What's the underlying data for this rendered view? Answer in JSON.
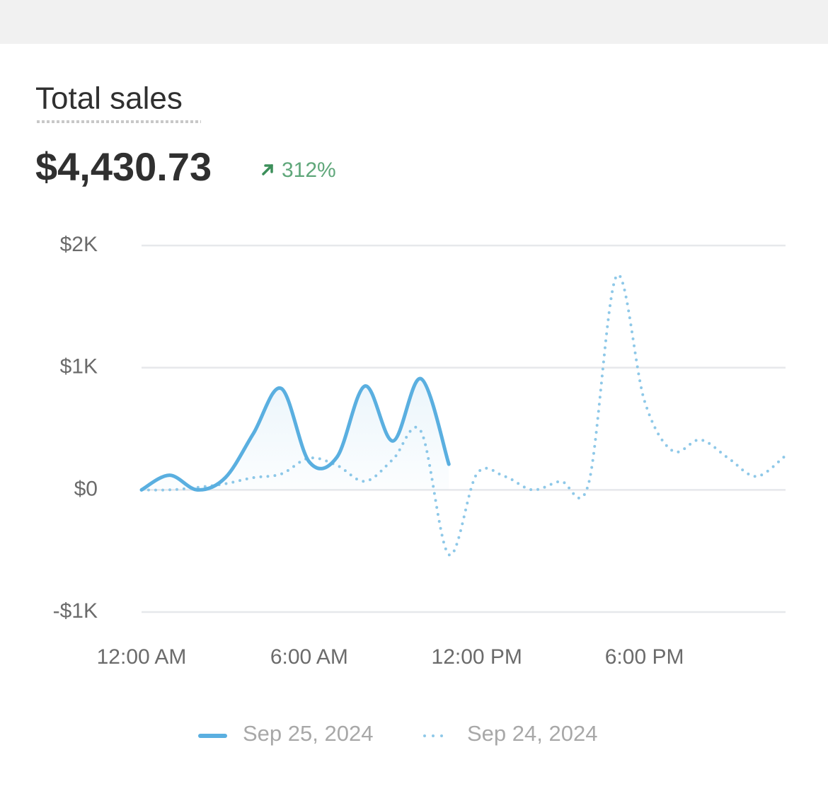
{
  "card": {
    "title": "Total sales",
    "total": "$4,430.73",
    "change": "312%"
  },
  "chart_data": {
    "type": "line",
    "x": [
      0,
      1,
      2,
      3,
      4,
      5,
      6,
      7,
      8,
      9,
      10,
      11,
      12,
      13,
      14,
      15,
      16,
      17,
      18,
      19,
      20,
      21,
      22,
      23
    ],
    "xlim": [
      0,
      23
    ],
    "xticks": [
      {
        "value": 0,
        "label": "12:00 AM"
      },
      {
        "value": 6,
        "label": "6:00 AM"
      },
      {
        "value": 12,
        "label": "12:00 PM"
      },
      {
        "value": 18,
        "label": "6:00 PM"
      }
    ],
    "ylim": [
      -1000,
      2000
    ],
    "yticks": [
      {
        "value": -1000,
        "label": "-$1K"
      },
      {
        "value": 0,
        "label": "$0"
      },
      {
        "value": 1000,
        "label": "$1K"
      },
      {
        "value": 2000,
        "label": "$2K"
      }
    ],
    "grid": true,
    "series": [
      {
        "name": "Sep 25, 2024",
        "color": "#5aafe0",
        "style": "solid",
        "values": [
          0,
          120,
          0,
          100,
          460,
          830,
          230,
          270,
          850,
          400,
          910,
          210,
          null,
          null,
          null,
          null,
          null,
          null,
          null,
          null,
          null,
          null,
          null,
          null
        ]
      },
      {
        "name": "Sep 24, 2024",
        "color": "#8ec8e8",
        "style": "dotted",
        "values": [
          0,
          0,
          20,
          50,
          100,
          130,
          260,
          200,
          70,
          250,
          480,
          -530,
          130,
          110,
          0,
          70,
          50,
          1750,
          730,
          320,
          410,
          260,
          110,
          270
        ]
      }
    ]
  }
}
